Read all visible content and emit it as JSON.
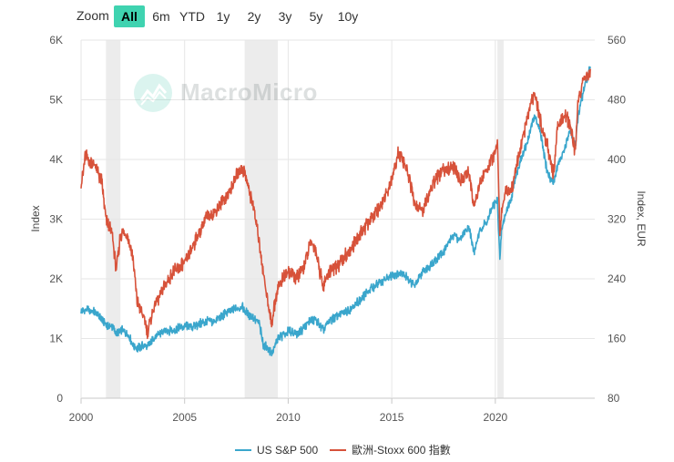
{
  "toolbar": {
    "zoom_label": "Zoom",
    "buttons": [
      {
        "label": "All",
        "active": true
      },
      {
        "label": "6m",
        "active": false
      },
      {
        "label": "YTD",
        "active": false
      },
      {
        "label": "1y",
        "active": false
      },
      {
        "label": "2y",
        "active": false
      },
      {
        "label": "3y",
        "active": false
      },
      {
        "label": "5y",
        "active": false
      },
      {
        "label": "10y",
        "active": false
      }
    ]
  },
  "watermark": {
    "text": "MacroMicro"
  },
  "chart_data": {
    "type": "line",
    "title": "",
    "xlabel": "",
    "x_range": [
      2000,
      2024.8
    ],
    "x_ticks": [
      "2000",
      "2005",
      "2010",
      "2015",
      "2020"
    ],
    "y_left": {
      "label": "Index",
      "range": [
        0,
        6000
      ],
      "ticks": [
        "0",
        "1K",
        "2K",
        "3K",
        "4K",
        "5K",
        "6K"
      ]
    },
    "y_right": {
      "label": "Index, EUR",
      "range": [
        80,
        560
      ],
      "ticks": [
        "80",
        "160",
        "240",
        "320",
        "400",
        "480",
        "560"
      ]
    },
    "shaded_periods": [
      [
        2001.2,
        2001.9
      ],
      [
        2007.9,
        2009.5
      ],
      [
        2020.1,
        2020.4
      ]
    ],
    "series": [
      {
        "name": "US S&P 500",
        "color": "#3aa6cc",
        "axis": "left",
        "x": [
          2000.0,
          2000.2,
          2000.5,
          2000.7,
          2001.0,
          2001.2,
          2001.5,
          2001.7,
          2002.0,
          2002.3,
          2002.5,
          2002.7,
          2003.0,
          2003.2,
          2003.5,
          2004.0,
          2004.5,
          2005.0,
          2005.5,
          2006.0,
          2006.5,
          2007.0,
          2007.5,
          2007.8,
          2008.0,
          2008.3,
          2008.6,
          2008.8,
          2009.0,
          2009.2,
          2009.5,
          2010.0,
          2010.5,
          2011.0,
          2011.3,
          2011.7,
          2012.0,
          2012.5,
          2013.0,
          2013.5,
          2014.0,
          2014.5,
          2015.0,
          2015.5,
          2015.8,
          2016.1,
          2016.5,
          2017.0,
          2017.5,
          2018.0,
          2018.3,
          2018.7,
          2018.97,
          2019.3,
          2019.6,
          2019.9,
          2020.1,
          2020.22,
          2020.3,
          2020.5,
          2020.8,
          2021.0,
          2021.5,
          2021.9,
          2022.2,
          2022.5,
          2022.8,
          2023.0,
          2023.3,
          2023.6,
          2023.85,
          2024.0,
          2024.3,
          2024.6
        ],
        "values": [
          1450,
          1480,
          1460,
          1420,
          1330,
          1220,
          1200,
          1080,
          1140,
          1060,
          900,
          830,
          880,
          850,
          1000,
          1130,
          1140,
          1210,
          1210,
          1280,
          1290,
          1430,
          1500,
          1540,
          1420,
          1350,
          1250,
          900,
          850,
          740,
          1000,
          1120,
          1080,
          1280,
          1320,
          1140,
          1300,
          1400,
          1500,
          1650,
          1840,
          1950,
          2060,
          2100,
          2000,
          1880,
          2110,
          2280,
          2450,
          2750,
          2650,
          2900,
          2450,
          2850,
          2950,
          3230,
          3300,
          2300,
          2800,
          3100,
          3400,
          3750,
          4250,
          4750,
          4400,
          3800,
          3600,
          3900,
          4100,
          4500,
          4200,
          4750,
          5200,
          5550
        ]
      },
      {
        "name": "歐洲-Stoxx 600 指數",
        "color": "#d7523a",
        "axis": "right",
        "x": [
          2000.0,
          2000.1,
          2000.2,
          2000.5,
          2000.7,
          2001.0,
          2001.2,
          2001.5,
          2001.7,
          2001.9,
          2002.2,
          2002.5,
          2002.7,
          2003.0,
          2003.2,
          2003.5,
          2004.0,
          2004.5,
          2005.0,
          2005.5,
          2006.0,
          2006.5,
          2007.0,
          2007.3,
          2007.5,
          2007.8,
          2008.0,
          2008.3,
          2008.6,
          2008.8,
          2009.0,
          2009.2,
          2009.5,
          2010.0,
          2010.4,
          2010.8,
          2011.1,
          2011.3,
          2011.7,
          2012.0,
          2012.5,
          2013.0,
          2013.5,
          2014.0,
          2014.5,
          2015.0,
          2015.3,
          2015.5,
          2015.8,
          2016.1,
          2016.5,
          2017.0,
          2017.5,
          2018.0,
          2018.3,
          2018.7,
          2018.97,
          2019.3,
          2019.6,
          2019.9,
          2020.1,
          2020.22,
          2020.3,
          2020.5,
          2020.8,
          2021.0,
          2021.5,
          2021.9,
          2022.2,
          2022.5,
          2022.8,
          2023.0,
          2023.3,
          2023.6,
          2023.85,
          2024.0,
          2024.3,
          2024.6
        ],
        "values": [
          370,
          380,
          405,
          395,
          390,
          370,
          320,
          300,
          250,
          300,
          300,
          270,
          210,
          190,
          170,
          200,
          230,
          250,
          260,
          290,
          320,
          330,
          350,
          365,
          380,
          390,
          370,
          340,
          290,
          250,
          210,
          180,
          230,
          250,
          240,
          260,
          290,
          280,
          230,
          250,
          260,
          280,
          300,
          320,
          340,
          370,
          410,
          400,
          380,
          340,
          330,
          370,
          385,
          390,
          370,
          385,
          340,
          370,
          390,
          400,
          420,
          300,
          330,
          360,
          360,
          390,
          450,
          490,
          450,
          420,
          380,
          440,
          460,
          450,
          410,
          480,
          510,
          520
        ]
      }
    ]
  }
}
